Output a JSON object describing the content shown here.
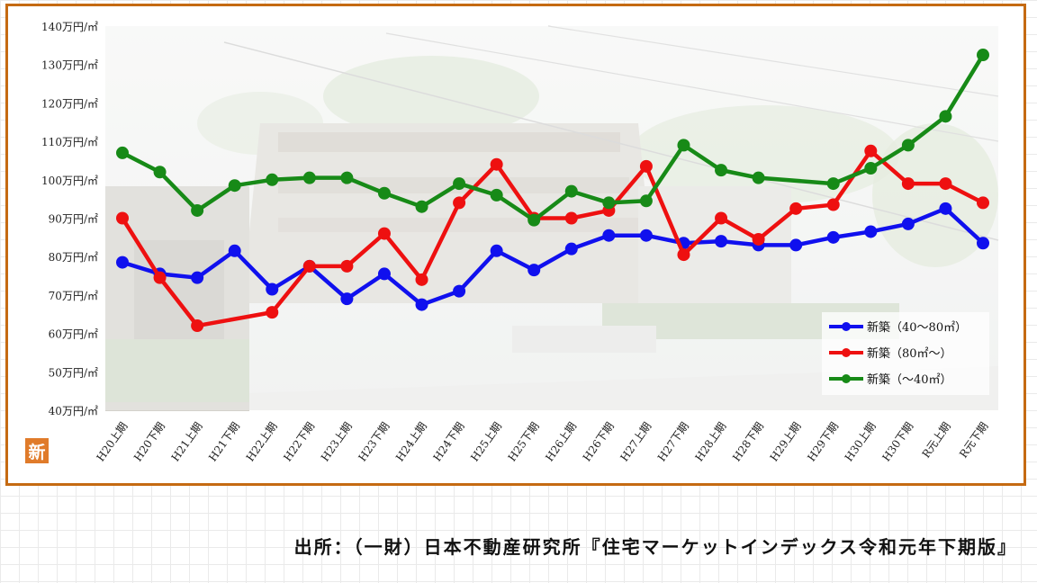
{
  "chart_data": {
    "type": "line",
    "categories": [
      "H20上期",
      "H20下期",
      "H21上期",
      "H21下期",
      "H22上期",
      "H22下期",
      "H23上期",
      "H23下期",
      "H24上期",
      "H24下期",
      "H25上期",
      "H25下期",
      "H26上期",
      "H26下期",
      "H27上期",
      "H27下期",
      "H28上期",
      "H28下期",
      "H29上期",
      "H29下期",
      "H30上期",
      "H30下期",
      "R元上期",
      "R元下期"
    ],
    "y_ticks": [
      "40万円/㎡",
      "50万円/㎡",
      "60万円/㎡",
      "70万円/㎡",
      "80万円/㎡",
      "90万円/㎡",
      "100万円/㎡",
      "110万円/㎡",
      "120万円/㎡",
      "130万円/㎡",
      "140万円/㎡"
    ],
    "ylim": [
      40,
      140
    ],
    "series": [
      {
        "name": "新築（40～80㎡）",
        "color": "#1010ee",
        "values": [
          78.5,
          75.5,
          74.5,
          81.5,
          71.5,
          77.5,
          69,
          75.5,
          67.5,
          71,
          81.5,
          76.5,
          82,
          85.5,
          85.5,
          83.5,
          84,
          83,
          83,
          85,
          86.5,
          88.5,
          92.5,
          83.5
        ]
      },
      {
        "name": "新築（80㎡～）",
        "color": "#ee1010",
        "values": [
          90,
          74.5,
          62,
          null,
          65.5,
          77.5,
          77.5,
          86,
          74,
          94,
          104,
          90,
          90,
          92,
          103.5,
          80.5,
          90,
          84.5,
          92.5,
          93.5,
          107.5,
          99,
          99,
          94
        ]
      },
      {
        "name": "新築（～40㎡）",
        "color": "#178a17",
        "values": [
          107,
          102,
          92,
          98.5,
          100,
          100.5,
          100.5,
          96.5,
          93,
          99,
          96,
          89.5,
          97,
          94,
          94.5,
          109,
          102.5,
          100.5,
          null,
          99,
          103,
          109,
          116.5,
          132.5
        ]
      }
    ],
    "legend_position": "bottom-right",
    "grid": false
  },
  "badge_text": "新",
  "source_text": "出所：（一財）日本不動産研究所『住宅マーケットインデックス令和元年下期版』"
}
